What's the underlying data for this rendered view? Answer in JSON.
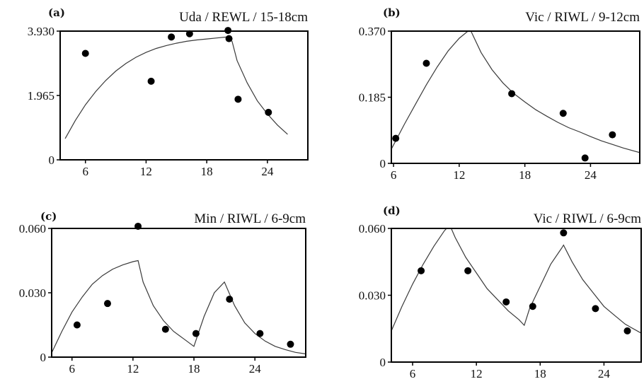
{
  "chart_data": [
    {
      "type": "scatter",
      "panel_label": "(a)",
      "title": "Uda / REWL / 15-18cm",
      "xlabel": "",
      "ylabel": "",
      "xlim": [
        3.5,
        28
      ],
      "ylim": [
        0,
        3.93
      ],
      "xticks": [
        6,
        12,
        18,
        24
      ],
      "xtick_labels": [
        "6",
        "12",
        "18",
        "24"
      ],
      "yticks": [
        0,
        1.965,
        3.93
      ],
      "ytick_labels": [
        "0",
        "1.965",
        "3.930"
      ],
      "grid": false,
      "legend": "none",
      "series": [
        {
          "kind": "points",
          "x": [
            6,
            12.5,
            14.5,
            16.3,
            20.1,
            20.2,
            21.1,
            24.1
          ],
          "y": [
            3.25,
            2.4,
            3.75,
            3.85,
            3.95,
            3.7,
            1.85,
            1.45
          ]
        },
        {
          "kind": "fit-line",
          "x": [
            4,
            5,
            6,
            7,
            8,
            9,
            10,
            11,
            12,
            13,
            14,
            15,
            16,
            17,
            18,
            19,
            20,
            20.5,
            21,
            22,
            23,
            24,
            25,
            26
          ],
          "y": [
            0.65,
            1.2,
            1.68,
            2.08,
            2.42,
            2.71,
            2.94,
            3.13,
            3.28,
            3.4,
            3.49,
            3.56,
            3.62,
            3.66,
            3.69,
            3.72,
            3.75,
            3.62,
            3.03,
            2.35,
            1.8,
            1.4,
            1.06,
            0.78
          ]
        }
      ]
    },
    {
      "type": "scatter",
      "panel_label": "(b)",
      "title": "Vic / RIWL / 9-12cm",
      "xlabel": "",
      "ylabel": "",
      "xlim": [
        5.8,
        28.5
      ],
      "ylim": [
        0,
        0.37
      ],
      "xticks": [
        6,
        12,
        18,
        24
      ],
      "xtick_labels": [
        "6",
        "12",
        "18",
        "24"
      ],
      "yticks": [
        0,
        0.185,
        0.37
      ],
      "ytick_labels": [
        "0",
        "0.185",
        "0.370"
      ],
      "grid": false,
      "legend": "none",
      "series": [
        {
          "kind": "points",
          "x": [
            6.2,
            9,
            16.8,
            21.5,
            23.5,
            26
          ],
          "y": [
            0.07,
            0.28,
            0.195,
            0.14,
            0.015,
            0.08
          ]
        },
        {
          "kind": "fit-line",
          "x": [
            5.8,
            7,
            8,
            9,
            10,
            11,
            12,
            13,
            14,
            15,
            16,
            17,
            18,
            19,
            20,
            21,
            22,
            23,
            24,
            25,
            26,
            27,
            28.5
          ],
          "y": [
            0.04,
            0.11,
            0.165,
            0.22,
            0.27,
            0.315,
            0.35,
            0.375,
            0.31,
            0.262,
            0.225,
            0.195,
            0.172,
            0.15,
            0.132,
            0.115,
            0.1,
            0.088,
            0.075,
            0.063,
            0.053,
            0.043,
            0.03
          ]
        }
      ]
    },
    {
      "type": "scatter",
      "panel_label": "(c)",
      "title": "Min / RIWL / 6-9cm",
      "xlabel": "",
      "ylabel": "",
      "xlim": [
        4,
        29
      ],
      "ylim": [
        0,
        0.06
      ],
      "xticks": [
        6,
        12,
        18,
        24
      ],
      "xtick_labels": [
        "6",
        "12",
        "18",
        "24"
      ],
      "yticks": [
        0,
        0.03,
        0.06
      ],
      "ytick_labels": [
        "0",
        "0.030",
        "0.060"
      ],
      "grid": false,
      "legend": "none",
      "series": [
        {
          "kind": "points",
          "x": [
            6.5,
            9.5,
            12.5,
            15.2,
            18.2,
            21.5,
            24.5,
            27.5
          ],
          "y": [
            0.015,
            0.025,
            0.061,
            0.013,
            0.011,
            0.027,
            0.011,
            0.006
          ]
        },
        {
          "kind": "fit-line",
          "x": [
            4,
            5,
            6,
            7,
            8,
            9,
            10,
            11,
            12,
            12.5,
            13,
            14,
            15,
            16,
            17,
            18,
            18.5,
            19,
            20,
            21,
            22,
            23,
            24,
            25,
            26,
            27,
            28,
            29
          ],
          "y": [
            0.002,
            0.012,
            0.021,
            0.028,
            0.034,
            0.038,
            0.041,
            0.043,
            0.0445,
            0.045,
            0.035,
            0.024,
            0.017,
            0.012,
            0.0085,
            0.005,
            0.012,
            0.019,
            0.03,
            0.035,
            0.024,
            0.016,
            0.011,
            0.0075,
            0.005,
            0.0035,
            0.0022,
            0.0015
          ]
        }
      ]
    },
    {
      "type": "scatter",
      "panel_label": "(d)",
      "title": "Vic / RIWL / 6-9cm",
      "xlabel": "",
      "ylabel": "",
      "xlim": [
        4,
        27.5
      ],
      "ylim": [
        0,
        0.06
      ],
      "xticks": [
        6,
        12,
        18,
        24
      ],
      "xtick_labels": [
        "6",
        "12",
        "18",
        "24"
      ],
      "yticks": [
        0,
        0.03,
        0.06
      ],
      "ytick_labels": [
        "0",
        "0.030",
        "0.060"
      ],
      "grid": false,
      "legend": "none",
      "series": [
        {
          "kind": "points",
          "x": [
            6.8,
            11.2,
            14.8,
            17.3,
            20.2,
            23.2,
            26.2
          ],
          "y": [
            0.041,
            0.041,
            0.027,
            0.025,
            0.058,
            0.024,
            0.014
          ]
        },
        {
          "kind": "fit-line",
          "x": [
            4,
            5,
            6,
            7,
            8,
            9,
            9.5,
            10,
            11,
            12,
            13,
            14,
            15,
            16,
            16.5,
            17,
            18,
            19,
            20,
            20.2,
            21,
            22,
            23,
            24,
            25,
            26,
            27.5
          ],
          "y": [
            0.014,
            0.025,
            0.035,
            0.044,
            0.052,
            0.059,
            0.0615,
            0.056,
            0.047,
            0.04,
            0.033,
            0.028,
            0.023,
            0.019,
            0.0165,
            0.024,
            0.034,
            0.044,
            0.051,
            0.0525,
            0.045,
            0.037,
            0.031,
            0.025,
            0.021,
            0.017,
            0.013
          ]
        }
      ]
    }
  ]
}
